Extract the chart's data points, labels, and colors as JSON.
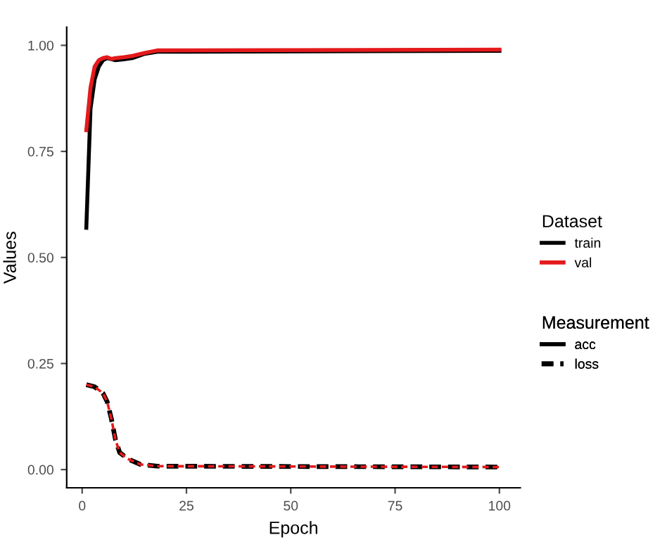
{
  "chart_data": {
    "type": "line",
    "xlabel": "Epoch",
    "ylabel": "Values",
    "legend_title": [
      "Dataset",
      "Measurement"
    ],
    "xlim": [
      -3.7,
      105
    ],
    "xticks": [
      0,
      25,
      50,
      75,
      100
    ],
    "ylim": [
      -0.043,
      1.043
    ],
    "yticks": [
      {
        "value": 0,
        "label": "0.00"
      },
      {
        "value": 0.25,
        "label": "0.25"
      },
      {
        "value": 0.5,
        "label": "0.50"
      },
      {
        "value": 0.75,
        "label": "0.75"
      },
      {
        "value": 1,
        "label": "1.00"
      }
    ],
    "annotations": [
      "acc"
    ],
    "grid": false,
    "legend": "right",
    "marker": "none",
    "series": [
      {
        "name": "train",
        "color": "#000000",
        "line_style": "solid",
        "x": [
          1,
          2,
          3,
          4,
          5,
          6,
          8,
          10,
          12,
          15,
          18,
          25,
          100
        ],
        "values": [
          0.57,
          0.85,
          0.92,
          0.95,
          0.965,
          0.97,
          0.965,
          0.967,
          0.97,
          0.98,
          0.985,
          0.985,
          0.987
        ]
      },
      {
        "name": "val",
        "color": "#e41a1c",
        "line_style": "solid",
        "x": [
          1,
          2,
          3,
          4,
          5,
          6,
          7,
          8,
          10,
          12,
          15,
          18,
          100
        ],
        "values": [
          0.8,
          0.9,
          0.95,
          0.965,
          0.97,
          0.972,
          0.968,
          0.97,
          0.972,
          0.975,
          0.982,
          0.988,
          0.99
        ]
      },
      {
        "name": "loss",
        "color": "#000000",
        "line_style": "dashed",
        "x": [
          1,
          3,
          5,
          6,
          7,
          8,
          9,
          11,
          14,
          18,
          100
        ],
        "values": [
          0.2,
          0.195,
          0.18,
          0.16,
          0.12,
          0.07,
          0.04,
          0.025,
          0.012,
          0.008,
          0.006
        ]
      },
      {
        "color": "#e41a1c",
        "line_style": "dashed",
        "x": [
          1,
          3,
          5,
          6,
          7,
          8,
          9,
          11,
          14,
          18,
          100
        ],
        "values": [
          0.2,
          0.195,
          0.18,
          0.16,
          0.12,
          0.07,
          0.04,
          0.025,
          0.012,
          0.008,
          0.006
        ]
      }
    ]
  }
}
